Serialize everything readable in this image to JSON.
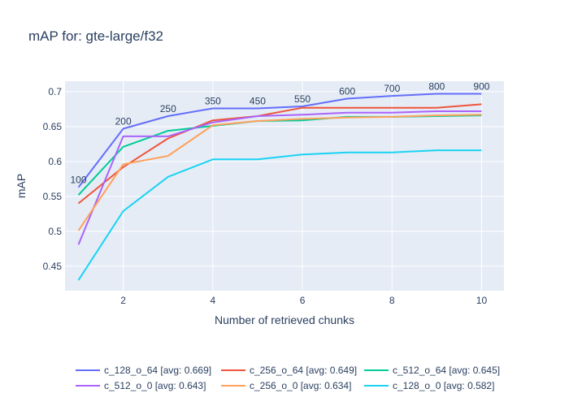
{
  "chart_data": {
    "type": "line",
    "title": "mAP for: gte-large/f32",
    "xlabel": "Number of retrieved chunks",
    "ylabel": "mAP",
    "xlim": [
      0.7,
      10.5
    ],
    "ylim": [
      0.415,
      0.715
    ],
    "xticks": [
      2,
      4,
      6,
      8,
      10
    ],
    "yticks": [
      0.45,
      0.5,
      0.55,
      0.6,
      0.65,
      0.7
    ],
    "x": [
      1,
      2,
      3,
      4,
      5,
      6,
      7,
      8,
      9,
      10
    ],
    "grid": true,
    "legend_position": "bottom",
    "series": [
      {
        "name": "c_128_o_64 [avg: 0.669]",
        "color": "#636efa",
        "values": [
          0.563,
          0.647,
          0.665,
          0.676,
          0.676,
          0.679,
          0.69,
          0.694,
          0.697,
          0.697
        ]
      },
      {
        "name": "c_256_o_64 [avg: 0.649]",
        "color": "#ef553b",
        "values": [
          0.54,
          0.592,
          0.633,
          0.659,
          0.665,
          0.677,
          0.677,
          0.677,
          0.677,
          0.682
        ]
      },
      {
        "name": "c_512_o_64 [avg: 0.645]",
        "color": "#00cc96",
        "values": [
          0.552,
          0.621,
          0.644,
          0.651,
          0.658,
          0.659,
          0.664,
          0.664,
          0.665,
          0.666
        ]
      },
      {
        "name": "c_512_o_0 [avg: 0.643]",
        "color": "#ab63fa",
        "values": [
          0.481,
          0.636,
          0.636,
          0.656,
          0.665,
          0.667,
          0.67,
          0.67,
          0.672,
          0.672
        ]
      },
      {
        "name": "c_256_o_0 [avg: 0.634]",
        "color": "#ffa15a",
        "values": [
          0.501,
          0.596,
          0.608,
          0.652,
          0.658,
          0.661,
          0.663,
          0.664,
          0.666,
          0.667
        ]
      },
      {
        "name": "c_128_o_0 [avg: 0.582]",
        "color": "#19d3f3",
        "values": [
          0.43,
          0.529,
          0.578,
          0.603,
          0.603,
          0.61,
          0.613,
          0.613,
          0.616,
          0.616
        ]
      }
    ],
    "annotations": [
      {
        "x": 1,
        "y": 0.563,
        "text": "100"
      },
      {
        "x": 2,
        "y": 0.647,
        "text": "200"
      },
      {
        "x": 3,
        "y": 0.665,
        "text": "250"
      },
      {
        "x": 4,
        "y": 0.676,
        "text": "350"
      },
      {
        "x": 5,
        "y": 0.676,
        "text": "450"
      },
      {
        "x": 6,
        "y": 0.679,
        "text": "550"
      },
      {
        "x": 7,
        "y": 0.69,
        "text": "600"
      },
      {
        "x": 8,
        "y": 0.694,
        "text": "700"
      },
      {
        "x": 9,
        "y": 0.697,
        "text": "800"
      },
      {
        "x": 10,
        "y": 0.697,
        "text": "900"
      }
    ]
  }
}
